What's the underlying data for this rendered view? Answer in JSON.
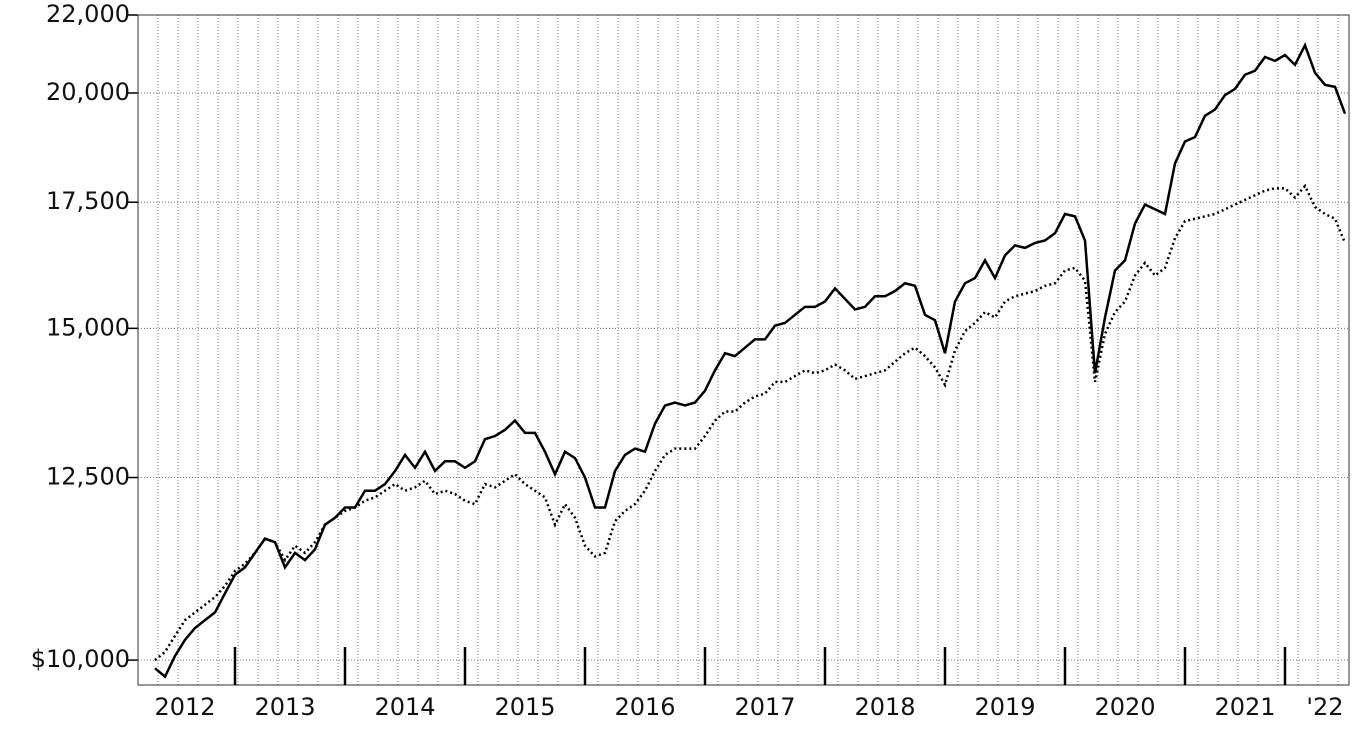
{
  "chart_data": {
    "type": "line",
    "log_scale": true,
    "grid": true,
    "categories": [
      null,
      null,
      null,
      "2012",
      null,
      null,
      null,
      null,
      null,
      null,
      null,
      null,
      null,
      "2013",
      null,
      null,
      null,
      null,
      null,
      null,
      null,
      null,
      null,
      null,
      null,
      "2014",
      null,
      null,
      null,
      null,
      null,
      null,
      null,
      null,
      null,
      null,
      null,
      "2015",
      null,
      null,
      null,
      null,
      null,
      null,
      null,
      null,
      null,
      null,
      null,
      "2016",
      null,
      null,
      null,
      null,
      null,
      null,
      null,
      null,
      null,
      null,
      null,
      "2017",
      null,
      null,
      null,
      null,
      null,
      null,
      null,
      null,
      null,
      null,
      null,
      "2018",
      null,
      null,
      null,
      null,
      null,
      null,
      null,
      null,
      null,
      null,
      null,
      "2019",
      null,
      null,
      null,
      null,
      null,
      null,
      null,
      null,
      null,
      null,
      null,
      "2020",
      null,
      null,
      null,
      null,
      null,
      null,
      null,
      null,
      null,
      null,
      null,
      "2021",
      null,
      null,
      null,
      null,
      null,
      null,
      null,
      "'22",
      null,
      null
    ],
    "series": [
      {
        "color": "#000000",
        "dash": "solid",
        "values": [
          9900,
          9800,
          10050,
          10250,
          10400,
          10500,
          10600,
          10850,
          11100,
          11200,
          11400,
          11600,
          11550,
          11200,
          11400,
          11300,
          11450,
          11800,
          11900,
          12050,
          12050,
          12300,
          12300,
          12400,
          12600,
          12850,
          12650,
          12900,
          12600,
          12750,
          12750,
          12650,
          12750,
          13100,
          13150,
          13250,
          13400,
          13200,
          13200,
          12900,
          12550,
          12900,
          12800,
          12500,
          12050,
          12050,
          12600,
          12850,
          12950,
          12900,
          13350,
          13650,
          13700,
          13650,
          13700,
          13900,
          14250,
          14550,
          14500,
          14650,
          14800,
          14800,
          15050,
          15100,
          15250,
          15400,
          15400,
          15500,
          15750,
          15550,
          15350,
          15400,
          15600,
          15600,
          15700,
          15850,
          15800,
          15250,
          15150,
          14550,
          15500,
          15850,
          15950,
          16300,
          15950,
          16400,
          16600,
          16550,
          16650,
          16700,
          16850,
          17250,
          17200,
          16700,
          14200,
          15200,
          16100,
          16300,
          17050,
          17450,
          17350,
          17250,
          18350,
          18850,
          18950,
          19450,
          19600,
          19950,
          20100,
          20450,
          20550,
          20900,
          20800,
          20950,
          20700,
          21200,
          20500,
          20200,
          20150,
          19500
        ]
      },
      {
        "color": "#000000",
        "dash": "dotted",
        "values": [
          10000,
          10100,
          10300,
          10500,
          10600,
          10700,
          10800,
          10950,
          11150,
          11250,
          11400,
          11600,
          11550,
          11300,
          11500,
          11400,
          11550,
          11800,
          11900,
          12000,
          12050,
          12150,
          12200,
          12300,
          12400,
          12300,
          12350,
          12450,
          12250,
          12300,
          12250,
          12150,
          12100,
          12400,
          12350,
          12450,
          12550,
          12400,
          12300,
          12200,
          11800,
          12100,
          11900,
          11500,
          11350,
          11400,
          11850,
          12000,
          12100,
          12300,
          12600,
          12850,
          12950,
          12950,
          12950,
          13150,
          13400,
          13550,
          13550,
          13700,
          13800,
          13850,
          14050,
          14050,
          14150,
          14250,
          14200,
          14250,
          14350,
          14250,
          14100,
          14150,
          14200,
          14250,
          14400,
          14550,
          14650,
          14500,
          14300,
          14000,
          14600,
          14950,
          15100,
          15300,
          15200,
          15500,
          15600,
          15650,
          15700,
          15800,
          15850,
          16100,
          16150,
          15900,
          14050,
          14900,
          15300,
          15500,
          16000,
          16250,
          16000,
          16150,
          16750,
          17100,
          17150,
          17200,
          17250,
          17350,
          17450,
          17550,
          17650,
          17750,
          17800,
          17800,
          17600,
          17850,
          17400,
          17250,
          17150,
          16650
        ]
      }
    ],
    "ylim": [
      9700,
      22000
    ],
    "yticks": [
      {
        "value": 10000,
        "label": "$10,000"
      },
      {
        "value": 12500,
        "label": "12,500"
      },
      {
        "value": 15000,
        "label": "15,000"
      },
      {
        "value": 17500,
        "label": "17,500"
      },
      {
        "value": 20000,
        "label": "20,000"
      },
      {
        "value": 22000,
        "label": "22,000"
      }
    ]
  }
}
